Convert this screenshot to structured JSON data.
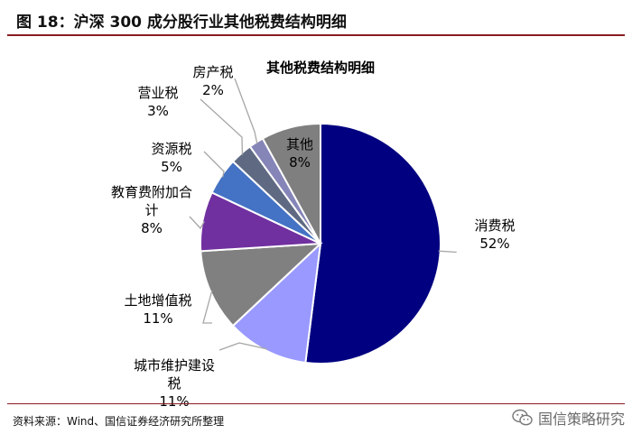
{
  "figure": {
    "title": "图 18：沪深 300 成分股行业其他税费结构明细"
  },
  "footer": {
    "source": "资料来源：Wind、国信证券经济研究所整理",
    "watermark": "国信策略研究",
    "watermark_icon": "wechat-icon"
  },
  "chart_data": {
    "type": "pie",
    "title": "其他税费结构明细",
    "start_angle_deg": 0,
    "direction": "clockwise",
    "slices": [
      {
        "label": "消费税",
        "value": 52,
        "display": "52%",
        "color": "#000080",
        "label_position": "outside"
      },
      {
        "label": "城市维护建设税",
        "value": 11,
        "display": "11%",
        "color": "#9999ff",
        "label_position": "outside"
      },
      {
        "label": "土地增值税",
        "value": 11,
        "display": "11%",
        "color": "#808080",
        "label_position": "outside"
      },
      {
        "label": "教育费附加合计",
        "value": 8,
        "display": "8%",
        "color": "#7030a0",
        "label_position": "outside"
      },
      {
        "label": "资源税",
        "value": 5,
        "display": "5%",
        "color": "#4472c4",
        "label_position": "outside"
      },
      {
        "label": "营业税",
        "value": 3,
        "display": "3%",
        "color": "#5f6a82",
        "label_position": "outside"
      },
      {
        "label": "房产税",
        "value": 2,
        "display": "2%",
        "color": "#8585b8",
        "label_position": "outside"
      },
      {
        "label": "其他",
        "value": 8,
        "display": "8%",
        "color": "#7f7f7f",
        "label_position": "inside"
      }
    ]
  }
}
